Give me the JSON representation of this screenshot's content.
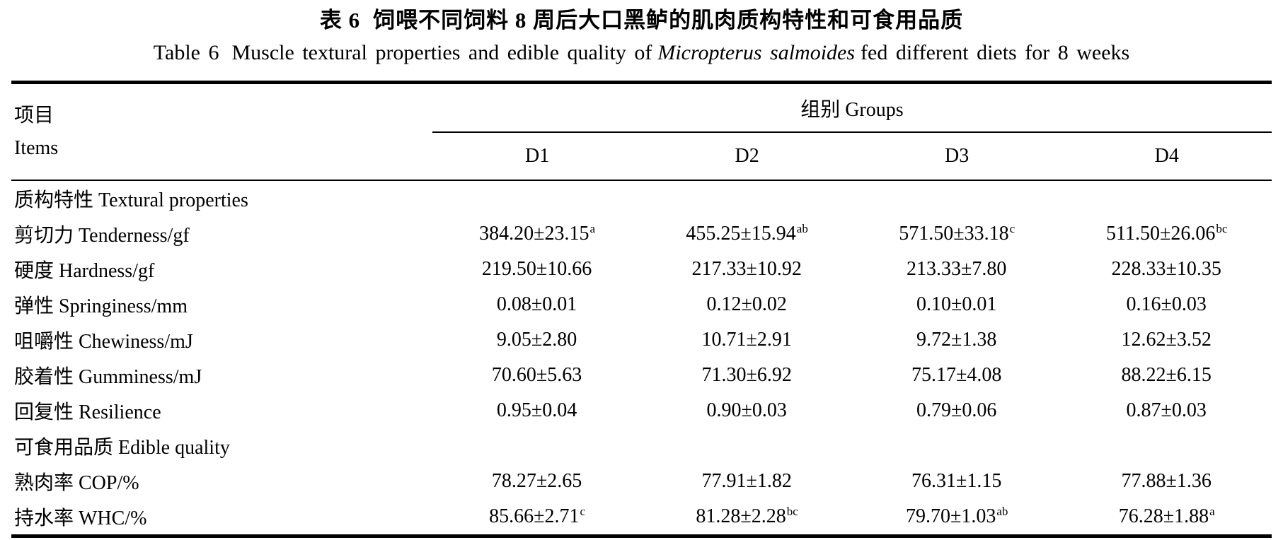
{
  "page": {
    "background": "#ffffff",
    "text_color": "#000000"
  },
  "title": {
    "zh_tag": "表 6",
    "zh_text": "饲喂不同饲料 8 周后大口黑鲈的肌肉质构特性和可食用品质"
  },
  "subtitle": {
    "tag": "Table 6",
    "prefix": "Muscle textural properties and edible quality of",
    "species_italic": "Micropterus salmoides",
    "suffix": "fed different diets for 8 weeks"
  },
  "table": {
    "items_header_zh": "项目",
    "items_header_en": "Items",
    "groups_header": "组别 Groups",
    "group_columns": [
      "D1",
      "D2",
      "D3",
      "D4"
    ],
    "rows": [
      {
        "type": "section",
        "label": "质构特性 Textural properties",
        "values": [
          {
            "text": "",
            "sup": ""
          },
          {
            "text": "",
            "sup": ""
          },
          {
            "text": "",
            "sup": ""
          },
          {
            "text": "",
            "sup": ""
          }
        ]
      },
      {
        "type": "data",
        "label": "剪切力 Tenderness/gf",
        "values": [
          {
            "text": "384.20±23.15",
            "sup": "a"
          },
          {
            "text": "455.25±15.94",
            "sup": "ab"
          },
          {
            "text": "571.50±33.18",
            "sup": "c"
          },
          {
            "text": "511.50±26.06",
            "sup": "bc"
          }
        ]
      },
      {
        "type": "data",
        "label": "硬度 Hardness/gf",
        "values": [
          {
            "text": "219.50±10.66",
            "sup": ""
          },
          {
            "text": "217.33±10.92",
            "sup": ""
          },
          {
            "text": "213.33±7.80",
            "sup": ""
          },
          {
            "text": "228.33±10.35",
            "sup": ""
          }
        ]
      },
      {
        "type": "data",
        "label": "弹性 Springiness/mm",
        "values": [
          {
            "text": "0.08±0.01",
            "sup": ""
          },
          {
            "text": "0.12±0.02",
            "sup": ""
          },
          {
            "text": "0.10±0.01",
            "sup": ""
          },
          {
            "text": "0.16±0.03",
            "sup": ""
          }
        ]
      },
      {
        "type": "data",
        "label": "咀嚼性 Chewiness/mJ",
        "values": [
          {
            "text": "9.05±2.80",
            "sup": ""
          },
          {
            "text": "10.71±2.91",
            "sup": ""
          },
          {
            "text": "9.72±1.38",
            "sup": ""
          },
          {
            "text": "12.62±3.52",
            "sup": ""
          }
        ]
      },
      {
        "type": "data",
        "label": "胶着性 Gumminess/mJ",
        "values": [
          {
            "text": "70.60±5.63",
            "sup": ""
          },
          {
            "text": "71.30±6.92",
            "sup": ""
          },
          {
            "text": "75.17±4.08",
            "sup": ""
          },
          {
            "text": "88.22±6.15",
            "sup": ""
          }
        ]
      },
      {
        "type": "data",
        "label": "回复性 Resilience",
        "values": [
          {
            "text": "0.95±0.04",
            "sup": ""
          },
          {
            "text": "0.90±0.03",
            "sup": ""
          },
          {
            "text": "0.79±0.06",
            "sup": ""
          },
          {
            "text": "0.87±0.03",
            "sup": ""
          }
        ]
      },
      {
        "type": "section",
        "label": "可食用品质 Edible quality",
        "values": [
          {
            "text": "",
            "sup": ""
          },
          {
            "text": "",
            "sup": ""
          },
          {
            "text": "",
            "sup": ""
          },
          {
            "text": "",
            "sup": ""
          }
        ]
      },
      {
        "type": "data",
        "label": "熟肉率 COP/%",
        "values": [
          {
            "text": "78.27±2.65",
            "sup": ""
          },
          {
            "text": "77.91±1.82",
            "sup": ""
          },
          {
            "text": "76.31±1.15",
            "sup": ""
          },
          {
            "text": "77.88±1.36",
            "sup": ""
          }
        ]
      },
      {
        "type": "data",
        "label": "持水率 WHC/%",
        "values": [
          {
            "text": "85.66±2.71",
            "sup": "c"
          },
          {
            "text": "81.28±2.28",
            "sup": "bc"
          },
          {
            "text": "79.70±1.03",
            "sup": "ab"
          },
          {
            "text": "76.28±1.88",
            "sup": "a"
          }
        ]
      }
    ]
  }
}
